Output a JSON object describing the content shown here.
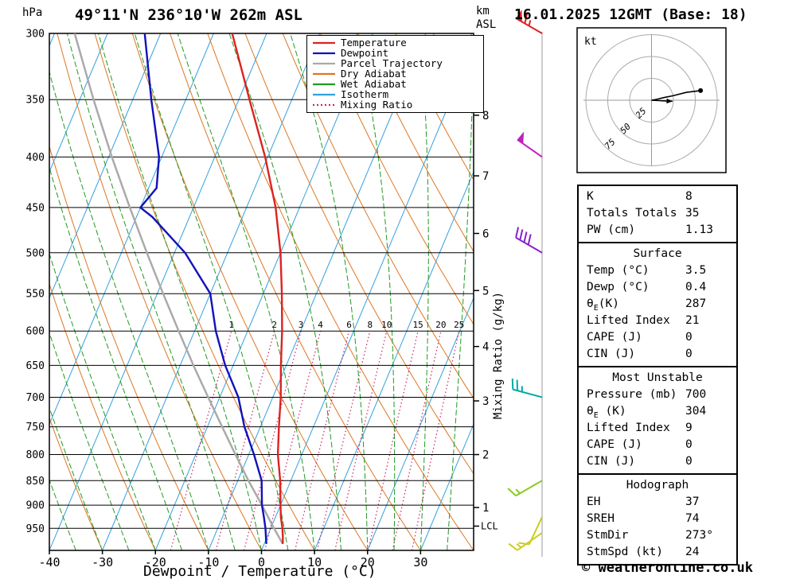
{
  "header": {
    "pressure_unit": "hPa",
    "title": "49°11'N 236°10'W 262m ASL",
    "datetime": "16.01.2025 12GMT (Base: 18)",
    "km_line1": "km",
    "km_line2": "ASL"
  },
  "axes": {
    "xlabel": "Dewpoint / Temperature (°C)",
    "right_axis_label": "Mixing Ratio (g/kg)",
    "pressure_ticks": [
      300,
      350,
      400,
      450,
      500,
      550,
      600,
      650,
      700,
      750,
      800,
      850,
      900,
      950
    ],
    "temp_ticks": [
      -40,
      -30,
      -20,
      -10,
      0,
      10,
      20,
      30
    ],
    "km_ticks": [
      {
        "km": 8,
        "p": 363
      },
      {
        "km": 7,
        "p": 418
      },
      {
        "km": 6,
        "p": 478
      },
      {
        "km": 5,
        "p": 546
      },
      {
        "km": 4,
        "p": 622
      },
      {
        "km": 3,
        "p": 706
      },
      {
        "km": 2,
        "p": 800
      },
      {
        "km": 1,
        "p": 905
      }
    ],
    "lcl": {
      "label": "LCL",
      "p": 945
    }
  },
  "legend": [
    {
      "label": "Temperature",
      "color": "#dd2222",
      "dash": ""
    },
    {
      "label": "Dewpoint",
      "color": "#1111bb",
      "dash": ""
    },
    {
      "label": "Parcel Trajectory",
      "color": "#aaaaaa",
      "dash": ""
    },
    {
      "label": "Dry Adiabat",
      "color": "#dd7722",
      "dash": ""
    },
    {
      "label": "Wet Adiabat",
      "color": "#229922",
      "dash": ""
    },
    {
      "label": "Isotherm",
      "color": "#33a0dd",
      "dash": ""
    },
    {
      "label": "Mixing Ratio",
      "color": "#cc2266",
      "dash": "2 3"
    }
  ],
  "chart_data": {
    "type": "skew-t-log-p",
    "pressure_range_hpa": [
      300,
      1000
    ],
    "temp_axis_range_c": [
      -40,
      40
    ],
    "skew": 0.42,
    "colors": {
      "temperature": "#dd2222",
      "dewpoint": "#1111bb",
      "parcel": "#aaaaaa",
      "dry_adiabat": "#dd7722",
      "wet_adiabat": "#229922",
      "isotherm": "#33a0dd",
      "mixing_ratio": "#cc2266",
      "grid": "#000000"
    },
    "isotherms": {
      "min": -80,
      "max": 40,
      "step": 10
    },
    "dry_adiabats": {
      "min": -40,
      "max": 120,
      "step": 10
    },
    "wet_adiabats": {
      "min": -55,
      "max": 50,
      "step": 5
    },
    "mixing_ratio_lines": [
      1,
      2,
      3,
      4,
      6,
      8,
      10,
      15,
      20,
      25
    ],
    "temperature_profile": [
      [
        985,
        3.5
      ],
      [
        970,
        3.0
      ],
      [
        950,
        2.2
      ],
      [
        925,
        1.0
      ],
      [
        900,
        0.0
      ],
      [
        850,
        -2.0
      ],
      [
        800,
        -4.5
      ],
      [
        750,
        -6.5
      ],
      [
        700,
        -8.5
      ],
      [
        650,
        -11.0
      ],
      [
        600,
        -13.5
      ],
      [
        550,
        -16.5
      ],
      [
        500,
        -20.0
      ],
      [
        450,
        -24.5
      ],
      [
        400,
        -30.5
      ],
      [
        350,
        -38.0
      ],
      [
        300,
        -46.5
      ]
    ],
    "dewpoint_profile": [
      [
        985,
        0.4
      ],
      [
        970,
        -0.2
      ],
      [
        950,
        -1.0
      ],
      [
        925,
        -2.2
      ],
      [
        900,
        -3.5
      ],
      [
        850,
        -5.5
      ],
      [
        800,
        -9.0
      ],
      [
        750,
        -13.0
      ],
      [
        700,
        -16.5
      ],
      [
        650,
        -21.5
      ],
      [
        600,
        -26.0
      ],
      [
        550,
        -30.0
      ],
      [
        500,
        -38.0
      ],
      [
        460,
        -47.0
      ],
      [
        450,
        -50.0
      ],
      [
        430,
        -48.5
      ],
      [
        400,
        -50.5
      ],
      [
        350,
        -56.5
      ],
      [
        300,
        -63.0
      ]
    ],
    "parcel_profile": [
      [
        985,
        3.5
      ],
      [
        945,
        0.2
      ],
      [
        900,
        -3.5
      ],
      [
        850,
        -8.0
      ],
      [
        800,
        -12.5
      ],
      [
        750,
        -17.2
      ],
      [
        700,
        -22.2
      ],
      [
        650,
        -27.5
      ],
      [
        600,
        -33.0
      ],
      [
        550,
        -38.9
      ],
      [
        500,
        -45.2
      ],
      [
        450,
        -52.0
      ],
      [
        400,
        -59.4
      ],
      [
        350,
        -67.4
      ],
      [
        300,
        -76.2
      ]
    ],
    "wind_barbs": [
      {
        "p": 300,
        "dir": 300,
        "speed": 65,
        "color": "#e02222"
      },
      {
        "p": 400,
        "dir": 305,
        "speed": 50,
        "color": "#bb22bb"
      },
      {
        "p": 500,
        "dir": 300,
        "speed": 40,
        "color": "#8822cc"
      },
      {
        "p": 700,
        "dir": 285,
        "speed": 25,
        "color": "#00aaaa"
      },
      {
        "p": 850,
        "dir": 240,
        "speed": 15,
        "color": "#88cc22"
      },
      {
        "p": 925,
        "dir": 205,
        "speed": 10,
        "color": "#cccc22"
      },
      {
        "p": 960,
        "dir": 235,
        "speed": 15,
        "color": "#cccc22"
      }
    ]
  },
  "hodograph": {
    "unit_label": "kt",
    "rings_kt": [
      25,
      50,
      75
    ],
    "trace_kt": [
      [
        0,
        0
      ],
      [
        6,
        1
      ],
      [
        14,
        3
      ],
      [
        24,
        5
      ],
      [
        40,
        9
      ],
      [
        56,
        11
      ]
    ],
    "storm_motion": {
      "dir_deg": 273,
      "speed_kt": 24
    }
  },
  "stats": {
    "sections": [
      {
        "rows": [
          {
            "label": "K",
            "value": "8"
          },
          {
            "label": "Totals Totals",
            "value": "35"
          },
          {
            "label": "PW (cm)",
            "value": "1.13"
          }
        ]
      },
      {
        "title": "Surface",
        "rows": [
          {
            "label": "Temp (°C)",
            "value": "3.5"
          },
          {
            "label": "Dewp (°C)",
            "value": "0.4"
          },
          {
            "label": "θE(K)",
            "value": "287"
          },
          {
            "label": "Lifted Index",
            "value": "21"
          },
          {
            "label": "CAPE (J)",
            "value": "0"
          },
          {
            "label": "CIN (J)",
            "value": "0"
          }
        ]
      },
      {
        "title": "Most Unstable",
        "rows": [
          {
            "label": "Pressure (mb)",
            "value": "700"
          },
          {
            "label": "θE (K)",
            "value": "304"
          },
          {
            "label": "Lifted Index",
            "value": "9"
          },
          {
            "label": "CAPE (J)",
            "value": "0"
          },
          {
            "label": "CIN (J)",
            "value": "0"
          }
        ]
      },
      {
        "title": "Hodograph",
        "rows": [
          {
            "label": "EH",
            "value": "37"
          },
          {
            "label": "SREH",
            "value": "74"
          },
          {
            "label": "StmDir",
            "value": "273°"
          },
          {
            "label": "StmSpd (kt)",
            "value": "24"
          }
        ]
      }
    ]
  },
  "footer": {
    "copyright": "© weatheronline.co.uk"
  }
}
